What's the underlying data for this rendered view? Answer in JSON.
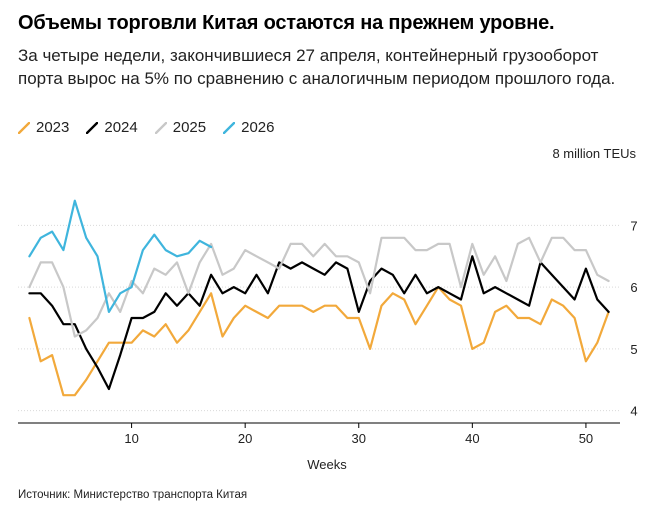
{
  "title": "Объемы торговли Китая остаются на прежнем уровне.",
  "subtitle": "За четыре недели, закончившиеся 27 апреля, контейнерный грузооборот порта вырос на 5% по сравнению с аналогичным периодом прошлого года.",
  "source": "Источник: Министерство транспорта Китая",
  "colors": {
    "2023": "#f2a93b",
    "2024": "#000000",
    "2025": "#c8c8c8",
    "2026": "#3fb5dd"
  },
  "chart_data": {
    "type": "line",
    "title": "Объемы торговли Китая остаются на прежнем уровне.",
    "xlabel": "Weeks",
    "ylabel": "8 million TEUs",
    "xlim": [
      0,
      53
    ],
    "ylim": [
      3.8,
      7.8
    ],
    "xticks": [
      10,
      20,
      30,
      40,
      50
    ],
    "yticks": [
      4,
      5,
      6,
      7
    ],
    "series": [
      {
        "name": "2023",
        "x": [
          1,
          2,
          3,
          4,
          5,
          6,
          7,
          8,
          9,
          10,
          11,
          12,
          13,
          14,
          15,
          16,
          17,
          18,
          19,
          20,
          21,
          22,
          23,
          24,
          25,
          26,
          27,
          28,
          29,
          30,
          31,
          32,
          33,
          34,
          35,
          36,
          37,
          38,
          39,
          40,
          41,
          42,
          43,
          44,
          45,
          46,
          47,
          48,
          49,
          50,
          51,
          52
        ],
        "values": [
          5.5,
          4.8,
          4.9,
          4.25,
          4.25,
          4.5,
          4.8,
          5.1,
          5.1,
          5.1,
          5.3,
          5.2,
          5.4,
          5.1,
          5.3,
          5.6,
          5.9,
          5.2,
          5.5,
          5.7,
          5.6,
          5.5,
          5.7,
          5.7,
          5.7,
          5.6,
          5.7,
          5.7,
          5.5,
          5.5,
          5.0,
          5.7,
          5.9,
          5.8,
          5.4,
          5.7,
          6.0,
          5.8,
          5.7,
          5.0,
          5.1,
          5.6,
          5.7,
          5.5,
          5.5,
          5.4,
          5.8,
          5.7,
          5.5,
          4.8,
          5.1,
          5.6
        ]
      },
      {
        "name": "2024",
        "x": [
          1,
          2,
          3,
          4,
          5,
          6,
          7,
          8,
          9,
          10,
          11,
          12,
          13,
          14,
          15,
          16,
          17,
          18,
          19,
          20,
          21,
          22,
          23,
          24,
          25,
          26,
          27,
          28,
          29,
          30,
          31,
          32,
          33,
          34,
          35,
          36,
          37,
          38,
          39,
          40,
          41,
          42,
          43,
          44,
          45,
          46,
          47,
          48,
          49,
          50,
          51,
          52
        ],
        "values": [
          5.9,
          5.9,
          5.7,
          5.4,
          5.4,
          5.0,
          4.7,
          4.35,
          4.9,
          5.5,
          5.5,
          5.6,
          5.9,
          5.7,
          5.9,
          5.7,
          6.2,
          5.9,
          6.0,
          5.9,
          6.2,
          5.9,
          6.4,
          6.3,
          6.4,
          6.3,
          6.2,
          6.4,
          6.3,
          5.6,
          6.1,
          6.3,
          6.2,
          5.9,
          6.2,
          5.9,
          6.0,
          5.9,
          5.8,
          6.5,
          5.9,
          6.0,
          5.9,
          5.8,
          5.7,
          6.4,
          6.2,
          6.0,
          5.8,
          6.3,
          5.8,
          5.6
        ]
      },
      {
        "name": "2025",
        "x": [
          1,
          2,
          3,
          4,
          5,
          6,
          7,
          8,
          9,
          10,
          11,
          12,
          13,
          14,
          15,
          16,
          17,
          18,
          19,
          20,
          21,
          22,
          23,
          24,
          25,
          26,
          27,
          28,
          29,
          30,
          31,
          32,
          33,
          34,
          35,
          36,
          37,
          38,
          39,
          40,
          41,
          42,
          43,
          44,
          45,
          46,
          47,
          48,
          49,
          50,
          51,
          52
        ],
        "values": [
          6.0,
          6.4,
          6.4,
          6.0,
          5.2,
          5.3,
          5.5,
          5.9,
          5.6,
          6.1,
          5.9,
          6.3,
          6.2,
          6.4,
          5.9,
          6.4,
          6.7,
          6.2,
          6.3,
          6.6,
          6.5,
          6.4,
          6.3,
          6.7,
          6.7,
          6.5,
          6.7,
          6.5,
          6.5,
          6.4,
          5.9,
          6.8,
          6.8,
          6.8,
          6.6,
          6.6,
          6.7,
          6.7,
          6.0,
          6.7,
          6.2,
          6.5,
          6.1,
          6.7,
          6.8,
          6.4,
          6.8,
          6.8,
          6.6,
          6.6,
          6.2,
          6.1
        ]
      },
      {
        "name": "2026",
        "x": [
          1,
          2,
          3,
          4,
          5,
          6,
          7,
          8,
          9,
          10,
          11,
          12,
          13,
          14,
          15,
          16,
          17
        ],
        "values": [
          6.5,
          6.8,
          6.9,
          6.6,
          7.4,
          6.8,
          6.5,
          5.6,
          5.9,
          6.0,
          6.6,
          6.85,
          6.6,
          6.5,
          6.55,
          6.75,
          6.65
        ]
      }
    ]
  }
}
